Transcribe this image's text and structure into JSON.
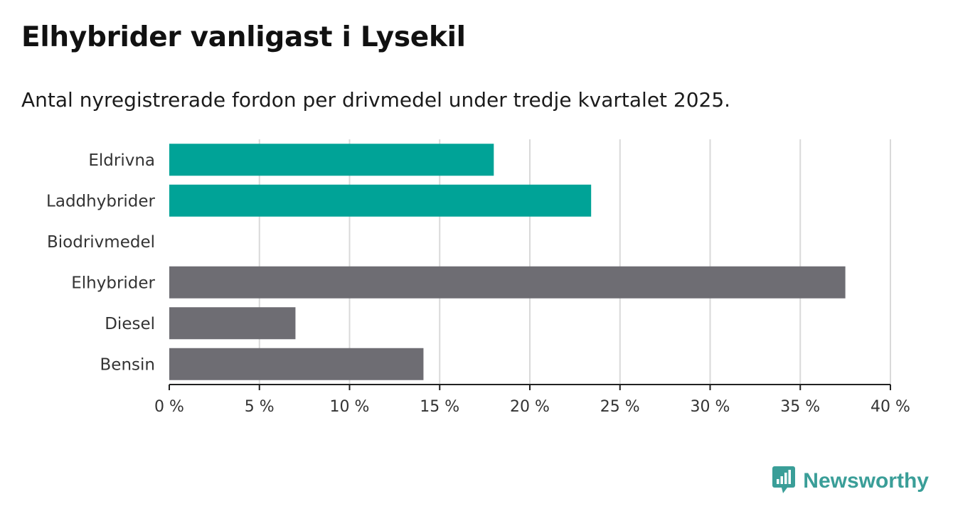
{
  "title": "Elhybrider vanligast i Lysekil",
  "subtitle": "Antal nyregistrerade fordon per drivmedel under tredje kvartalet 2025.",
  "brand": {
    "name": "Newsworthy",
    "color": "#3a9e98",
    "icon": "chart-speech-bubble-icon"
  },
  "colors": {
    "highlight": "#00a397",
    "default": "#6e6d73",
    "grid": "#d9d9d9",
    "axis": "#222222"
  },
  "chart_data": {
    "type": "bar",
    "orientation": "horizontal",
    "title": "Elhybrider vanligast i Lysekil",
    "subtitle": "Antal nyregistrerade fordon per drivmedel under tredje kvartalet 2025.",
    "xlabel": "",
    "ylabel": "",
    "categories": [
      "Eldrivna",
      "Laddhybrider",
      "Biodrivmedel",
      "Elhybrider",
      "Diesel",
      "Bensin"
    ],
    "values": [
      18.0,
      23.4,
      0,
      37.5,
      7.0,
      14.1
    ],
    "groups": [
      "highlight",
      "highlight",
      "default",
      "default",
      "default",
      "default"
    ],
    "xlim": [
      0,
      40
    ],
    "ticks": [
      0,
      5,
      10,
      15,
      20,
      25,
      30,
      35,
      40
    ],
    "tick_labels": [
      "0 %",
      "5 %",
      "10 %",
      "15 %",
      "20 %",
      "25 %",
      "30 %",
      "35 %",
      "40 %"
    ],
    "grid": true,
    "legend": "none"
  }
}
